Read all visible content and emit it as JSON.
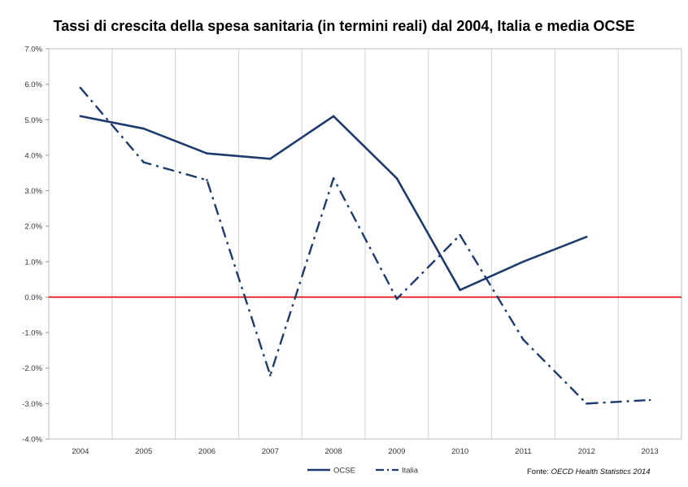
{
  "chart_data": {
    "type": "line",
    "title": "Tassi di crescita della spesa sanitaria (in termini reali) dal 2004, Italia e media OCSE",
    "categories": [
      "2004",
      "2005",
      "2006",
      "2007",
      "2008",
      "2009",
      "2010",
      "2011",
      "2012",
      "2013"
    ],
    "series": [
      {
        "name": "OCSE",
        "color": "#1f3b6e",
        "style": "solid",
        "values": [
          5.1,
          4.75,
          4.05,
          3.9,
          5.1,
          3.35,
          0.2,
          1.0,
          1.7,
          null
        ]
      },
      {
        "name": "Italia",
        "color": "#1f3b6e",
        "style": "dashdot",
        "values": [
          5.9,
          3.8,
          3.3,
          -2.2,
          3.35,
          -0.05,
          1.75,
          -1.2,
          -3.0,
          -2.9
        ]
      }
    ],
    "ylim": [
      -4.0,
      7.0
    ],
    "yticks": [
      7.0,
      6.0,
      5.0,
      4.0,
      3.0,
      2.0,
      1.0,
      0.0,
      -1.0,
      -2.0,
      -3.0,
      -4.0
    ],
    "ytick_labels": [
      "7.0%",
      "6.0%",
      "5.0%",
      "4.0%",
      "3.0%",
      "2.0%",
      "1.0%",
      "0.0%",
      "-1.0%",
      "-2.0%",
      "-3.0%",
      "-4.0%"
    ],
    "zero_line_color": "#e00000",
    "grid": "vertical",
    "legend_position": "bottom-center",
    "xlabel": "",
    "ylabel": ""
  },
  "source": {
    "prefix": "Fonte: ",
    "name": "OECD Health Statistics 2014"
  }
}
